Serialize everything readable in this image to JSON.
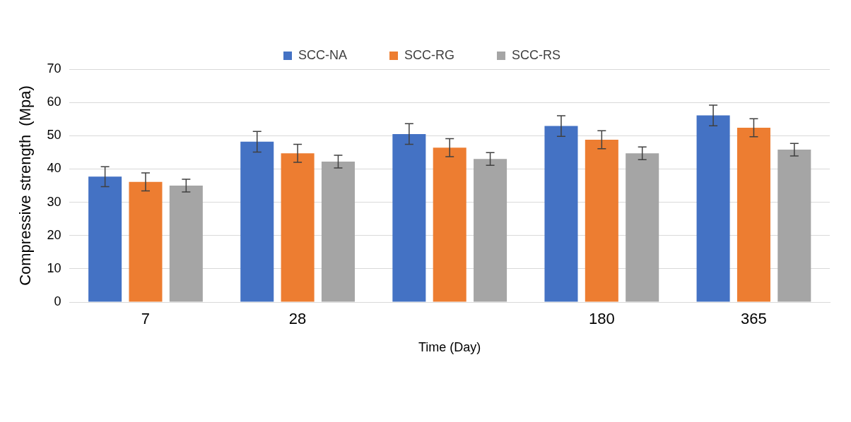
{
  "chart_data": {
    "type": "bar",
    "xlabel": "Time (Day)",
    "ylabel": "Compressive strength  (Mpa)",
    "categories": [
      "7",
      "28",
      null,
      "180",
      "365"
    ],
    "series": [
      {
        "name": "SCC-NA",
        "color": "#4472c4",
        "values": [
          37.7,
          48.2,
          50.5,
          52.9,
          56.1
        ],
        "errors": [
          3,
          3.1,
          3.1,
          3.1,
          3.1
        ]
      },
      {
        "name": "SCC-RG",
        "color": "#ed7d31",
        "values": [
          36.1,
          44.7,
          46.4,
          48.8,
          52.4
        ],
        "errors": [
          2.7,
          2.7,
          2.7,
          2.7,
          2.7
        ]
      },
      {
        "name": "SCC-RS",
        "color": "#a5a5a5",
        "values": [
          35,
          42.2,
          43,
          44.7,
          45.8
        ],
        "errors": [
          1.9,
          1.9,
          1.9,
          1.9,
          1.9
        ]
      }
    ],
    "ylim": [
      0,
      70
    ],
    "yticks": [
      0,
      10,
      20,
      30,
      40,
      50,
      60,
      70
    ],
    "grid": "y",
    "legend": "top"
  }
}
